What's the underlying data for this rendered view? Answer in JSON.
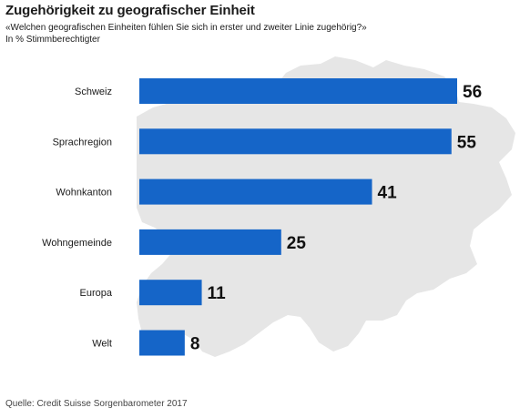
{
  "title": "Zugehörigkeit zu geografischer Einheit",
  "subtitle": "«Welchen geografischen Einheiten fühlen Sie sich in erster und zweiter Linie zugehörig?»",
  "unit_note": "In % Stimmberechtigter",
  "source": "Quelle: Credit Suisse Sorgenbarometer 2017",
  "background_map": "Switzerland silhouette",
  "colors": {
    "bar": "#1565c8",
    "map": "#e6e6e6",
    "text": "#1a1a1a"
  },
  "chart_data": {
    "type": "bar",
    "orientation": "horizontal",
    "categories": [
      "Schweiz",
      "Sprachregion",
      "Wohnkanton",
      "Wohngemeinde",
      "Europa",
      "Welt"
    ],
    "values": [
      56,
      55,
      41,
      25,
      11,
      8
    ],
    "data_labels": [
      "56",
      "55",
      "41",
      "25",
      "11",
      "8"
    ],
    "xlim": [
      0,
      56
    ],
    "grid": false
  }
}
